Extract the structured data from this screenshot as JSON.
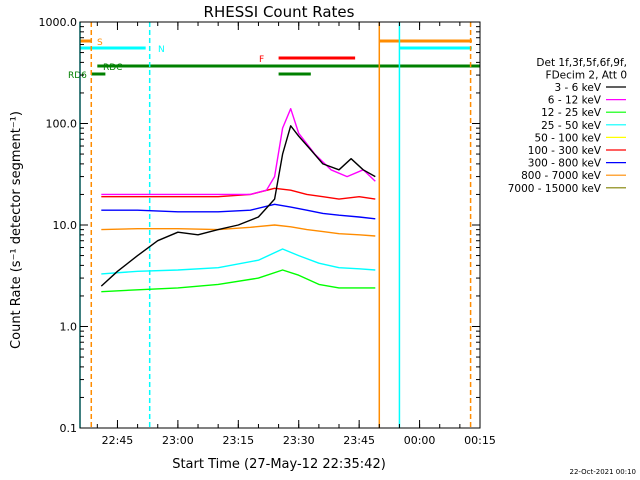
{
  "chart_data": {
    "type": "line",
    "title": "RHESSI Count Rates",
    "xlabel": "Start Time (27-May-12 22:35:42)",
    "ylabel": "Count Rate (s⁻¹ detector segment⁻¹)",
    "y_scale": "log",
    "ylim": [
      0.1,
      1000
    ],
    "xlim": [
      "22:35:42",
      "00:15"
    ],
    "x_ticks": [
      "22:45",
      "23:00",
      "23:15",
      "23:30",
      "23:45",
      "00:00",
      "00:15"
    ],
    "y_ticks": [
      "0.1",
      "1.0",
      "10.0",
      "100.0",
      "1000.0"
    ],
    "grid": false,
    "legend_position": "right",
    "legend_header": [
      "Det 1f,3f,5f,6f,9f,",
      "FDecim 2, Att 0"
    ],
    "footer": "22-Oct-2021 00:10",
    "data_window": [
      "22:41:00",
      "23:49:00"
    ],
    "series": [
      {
        "name": "3 - 6 keV",
        "color": "#000000",
        "x": [
          "22:41",
          "22:45",
          "22:50",
          "22:55",
          "23:00",
          "23:05",
          "23:10",
          "23:15",
          "23:20",
          "23:24",
          "23:26",
          "23:28",
          "23:30",
          "23:33",
          "23:36",
          "23:40",
          "23:43",
          "23:46",
          "23:49"
        ],
        "values": [
          2.5,
          3.5,
          5.0,
          7.0,
          8.5,
          8.0,
          9.0,
          10.0,
          12.0,
          18.0,
          50.0,
          95.0,
          75.0,
          55.0,
          40.0,
          35.0,
          45.0,
          35.0,
          30.0
        ]
      },
      {
        "name": "6 - 12 keV",
        "color": "#ff00ff",
        "x": [
          "22:41",
          "22:50",
          "23:00",
          "23:10",
          "23:18",
          "23:22",
          "23:24",
          "23:26",
          "23:28",
          "23:30",
          "23:34",
          "23:38",
          "23:42",
          "23:46",
          "23:49"
        ],
        "values": [
          20.0,
          20.0,
          20.0,
          20.0,
          20.0,
          22.0,
          30.0,
          90.0,
          140.0,
          80.0,
          50.0,
          35.0,
          30.0,
          35.0,
          27.0
        ]
      },
      {
        "name": "12 - 25 keV",
        "color": "#00ff00",
        "x": [
          "22:41",
          "22:50",
          "23:00",
          "23:10",
          "23:20",
          "23:26",
          "23:30",
          "23:35",
          "23:40",
          "23:45",
          "23:49"
        ],
        "values": [
          2.2,
          2.3,
          2.4,
          2.6,
          3.0,
          3.6,
          3.2,
          2.6,
          2.4,
          2.4,
          2.4
        ]
      },
      {
        "name": "25 - 50 keV",
        "color": "#00ffff",
        "x": [
          "22:41",
          "22:50",
          "23:00",
          "23:10",
          "23:20",
          "23:26",
          "23:30",
          "23:35",
          "23:40",
          "23:45",
          "23:49"
        ],
        "values": [
          3.3,
          3.5,
          3.6,
          3.8,
          4.5,
          5.8,
          5.0,
          4.2,
          3.8,
          3.7,
          3.6
        ]
      },
      {
        "name": "50 - 100 keV",
        "color": "#ffff00",
        "x": [
          "22:41",
          "23:00",
          "23:20",
          "23:30",
          "23:49"
        ],
        "values": [
          0,
          0,
          0,
          0,
          0
        ]
      },
      {
        "name": "100 - 300 keV",
        "color": "#ff0000",
        "x": [
          "22:41",
          "22:50",
          "23:00",
          "23:10",
          "23:18",
          "23:24",
          "23:28",
          "23:32",
          "23:36",
          "23:40",
          "23:45",
          "23:49"
        ],
        "values": [
          19.0,
          19.0,
          19.0,
          19.0,
          20.0,
          23.0,
          22.0,
          20.0,
          19.0,
          18.0,
          19.0,
          18.0
        ]
      },
      {
        "name": "300 - 800 keV",
        "color": "#0000ff",
        "x": [
          "22:41",
          "22:50",
          "23:00",
          "23:10",
          "23:18",
          "23:24",
          "23:28",
          "23:32",
          "23:36",
          "23:40",
          "23:45",
          "23:49"
        ],
        "values": [
          14.0,
          14.0,
          13.5,
          13.5,
          14.0,
          16.0,
          15.0,
          14.0,
          13.0,
          12.5,
          12.0,
          11.5
        ]
      },
      {
        "name": "800 - 7000 keV",
        "color": "#ff8c00",
        "x": [
          "22:41",
          "22:50",
          "23:00",
          "23:10",
          "23:18",
          "23:24",
          "23:28",
          "23:32",
          "23:36",
          "23:40",
          "23:45",
          "23:49"
        ],
        "values": [
          9.0,
          9.2,
          9.2,
          9.0,
          9.5,
          10.0,
          9.6,
          9.0,
          8.6,
          8.2,
          8.0,
          7.8
        ]
      },
      {
        "name": "7000 - 15000 keV",
        "color": "#808000",
        "x": [
          "22:41",
          "23:00",
          "23:20",
          "23:30",
          "23:49"
        ],
        "values": [
          0,
          0,
          0,
          0,
          0
        ]
      }
    ],
    "annotations": [
      {
        "label": "S",
        "color": "#ff8c00",
        "segments": [
          [
            "22:35:42",
            "22:38:30"
          ],
          [
            "23:50:00",
            "00:13:00"
          ]
        ]
      },
      {
        "label": "N",
        "color": "#00ffff",
        "segments": [
          [
            "22:35:42",
            "22:52:00"
          ],
          [
            "23:55:00",
            "00:13:00"
          ]
        ]
      },
      {
        "label": "F",
        "color": "#ff0000",
        "segments": [
          [
            "23:25:00",
            "23:44:00"
          ]
        ]
      },
      {
        "label": "RDC",
        "color": "#008000",
        "segments": [
          [
            "22:40:00",
            "00:15:00"
          ]
        ]
      },
      {
        "label": "RD6",
        "color": "#008000",
        "segments": [
          [
            "22:38:30",
            "22:42:00"
          ],
          [
            "23:25:00",
            "23:33:00"
          ]
        ]
      }
    ],
    "vlines": [
      {
        "x": "22:35:42",
        "color": "#00ffff",
        "style": "solid"
      },
      {
        "x": "22:38:30",
        "color": "#ff8c00",
        "style": "dashed"
      },
      {
        "x": "22:53:00",
        "color": "#00ffff",
        "style": "dashed"
      },
      {
        "x": "23:50:00",
        "color": "#ff8c00",
        "style": "solid"
      },
      {
        "x": "23:55:00",
        "color": "#00ffff",
        "style": "solid"
      },
      {
        "x": "00:12:40",
        "color": "#ff8c00",
        "style": "dashed"
      }
    ]
  }
}
